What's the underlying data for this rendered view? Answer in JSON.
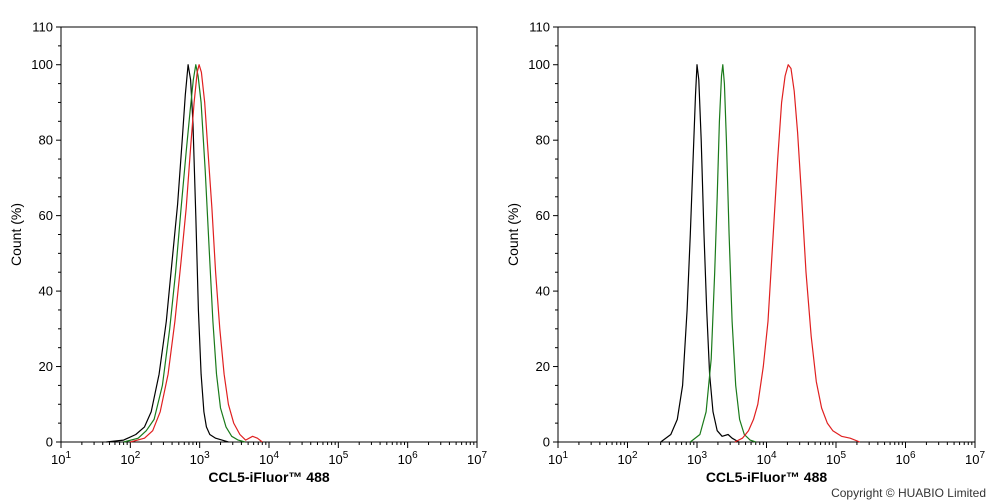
{
  "chart_data": [
    {
      "type": "line",
      "xlabel": "CCL5-iFluor™ 488",
      "ylabel": "Count  (%)",
      "xscale": "log",
      "xlim": [
        10,
        10000000
      ],
      "ylim": [
        0,
        110
      ],
      "yticks": [
        0,
        20,
        40,
        60,
        80,
        100,
        110
      ],
      "xtick_base": "10",
      "xtick_exps": [
        "1",
        "2",
        "3",
        "4",
        "5",
        "6",
        "7"
      ],
      "series": [
        {
          "color": "#000000",
          "points": [
            [
              45,
              0
            ],
            [
              80,
              0.5
            ],
            [
              120,
              2
            ],
            [
              160,
              4
            ],
            [
              200,
              8
            ],
            [
              260,
              18
            ],
            [
              330,
              32
            ],
            [
              400,
              48
            ],
            [
              480,
              63
            ],
            [
              560,
              80
            ],
            [
              620,
              92
            ],
            [
              680,
              100
            ],
            [
              740,
              96
            ],
            [
              800,
              85
            ],
            [
              880,
              60
            ],
            [
              960,
              35
            ],
            [
              1050,
              18
            ],
            [
              1150,
              8
            ],
            [
              1250,
              4
            ],
            [
              1400,
              2
            ],
            [
              1700,
              1
            ],
            [
              2100,
              0.5
            ],
            [
              2600,
              0
            ]
          ]
        },
        {
          "color": "#1a7a1a",
          "points": [
            [
              80,
              0
            ],
            [
              130,
              1
            ],
            [
              170,
              3
            ],
            [
              220,
              6
            ],
            [
              290,
              15
            ],
            [
              370,
              30
            ],
            [
              450,
              45
            ],
            [
              540,
              62
            ],
            [
              640,
              77
            ],
            [
              730,
              88
            ],
            [
              810,
              96
            ],
            [
              880,
              100
            ],
            [
              950,
              97
            ],
            [
              1050,
              90
            ],
            [
              1200,
              72
            ],
            [
              1380,
              50
            ],
            [
              1550,
              32
            ],
            [
              1750,
              18
            ],
            [
              2000,
              9
            ],
            [
              2400,
              4
            ],
            [
              2900,
              1.5
            ],
            [
              3600,
              0.5
            ],
            [
              4500,
              0
            ]
          ]
        },
        {
          "color": "#e02020",
          "points": [
            [
              100,
              0
            ],
            [
              160,
              1
            ],
            [
              210,
              3
            ],
            [
              270,
              8
            ],
            [
              350,
              18
            ],
            [
              440,
              32
            ],
            [
              540,
              48
            ],
            [
              640,
              62
            ],
            [
              740,
              78
            ],
            [
              830,
              90
            ],
            [
              920,
              98
            ],
            [
              980,
              100
            ],
            [
              1060,
              98
            ],
            [
              1180,
              90
            ],
            [
              1320,
              77
            ],
            [
              1500,
              62
            ],
            [
              1700,
              45
            ],
            [
              1950,
              30
            ],
            [
              2250,
              18
            ],
            [
              2600,
              10
            ],
            [
              3100,
              5
            ],
            [
              3800,
              2
            ],
            [
              4600,
              0.5
            ],
            [
              5800,
              1.5
            ],
            [
              6800,
              1
            ],
            [
              8000,
              0
            ]
          ]
        }
      ]
    },
    {
      "type": "line",
      "xlabel": "CCL5-iFluor™ 488",
      "ylabel": "Count  (%)",
      "xscale": "log",
      "xlim": [
        10,
        10000000
      ],
      "ylim": [
        0,
        110
      ],
      "yticks": [
        0,
        20,
        40,
        60,
        80,
        100,
        110
      ],
      "xtick_base": "10",
      "xtick_exps": [
        "1",
        "2",
        "3",
        "4",
        "5",
        "6",
        "7"
      ],
      "series": [
        {
          "color": "#000000",
          "points": [
            [
              300,
              0
            ],
            [
              420,
              2
            ],
            [
              520,
              6
            ],
            [
              620,
              15
            ],
            [
              720,
              35
            ],
            [
              800,
              55
            ],
            [
              880,
              75
            ],
            [
              950,
              92
            ],
            [
              1000,
              100
            ],
            [
              1060,
              96
            ],
            [
              1150,
              80
            ],
            [
              1260,
              55
            ],
            [
              1380,
              35
            ],
            [
              1520,
              18
            ],
            [
              1700,
              8
            ],
            [
              1950,
              3
            ],
            [
              2300,
              1.5
            ],
            [
              2800,
              2
            ],
            [
              3200,
              1
            ],
            [
              4000,
              0
            ]
          ]
        },
        {
          "color": "#1a7a1a",
          "points": [
            [
              800,
              0
            ],
            [
              1100,
              2
            ],
            [
              1350,
              8
            ],
            [
              1600,
              22
            ],
            [
              1800,
              45
            ],
            [
              1950,
              65
            ],
            [
              2100,
              85
            ],
            [
              2250,
              97
            ],
            [
              2350,
              100
            ],
            [
              2480,
              95
            ],
            [
              2650,
              80
            ],
            [
              2900,
              55
            ],
            [
              3200,
              32
            ],
            [
              3600,
              15
            ],
            [
              4100,
              6
            ],
            [
              4800,
              2
            ],
            [
              5800,
              0.5
            ],
            [
              7000,
              0
            ]
          ]
        },
        {
          "color": "#e02020",
          "points": [
            [
              3500,
              0
            ],
            [
              4500,
              1
            ],
            [
              5500,
              3
            ],
            [
              6500,
              6
            ],
            [
              7500,
              10
            ],
            [
              9000,
              20
            ],
            [
              10500,
              32
            ],
            [
              12500,
              55
            ],
            [
              14500,
              75
            ],
            [
              16500,
              90
            ],
            [
              18500,
              97
            ],
            [
              20500,
              100
            ],
            [
              22500,
              99
            ],
            [
              25000,
              93
            ],
            [
              28000,
              82
            ],
            [
              32000,
              65
            ],
            [
              37000,
              45
            ],
            [
              44000,
              28
            ],
            [
              52000,
              16
            ],
            [
              62000,
              9
            ],
            [
              75000,
              5
            ],
            [
              90000,
              3
            ],
            [
              120000,
              1.5
            ],
            [
              160000,
              1
            ],
            [
              220000,
              0
            ]
          ]
        }
      ]
    }
  ],
  "footer": {
    "copyright": "Copyright © HUABIO Limited"
  }
}
